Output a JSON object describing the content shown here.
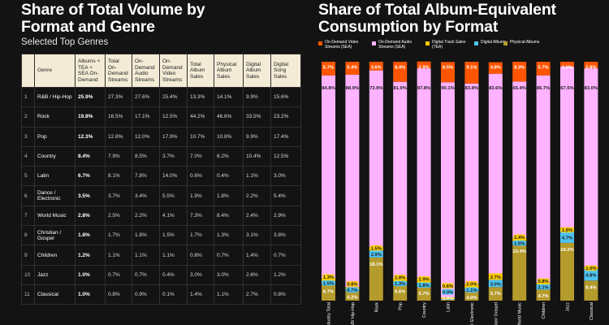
{
  "left": {
    "title_line1": "Share of Total Volume by",
    "title_line2": "Format and Genre",
    "subtitle": "Selected Top Genres",
    "headers": [
      "",
      "Genre",
      "Albums + TEA + SEA On-Demand",
      "Total On-Demand Streams",
      "On-Demand Audio Streams",
      "On-Demand Video Streams",
      "Total Album Sales",
      "Physical Album Sales",
      "Digital Album Sales",
      "Digital Song Sales"
    ],
    "rows": [
      {
        "rank": "1",
        "genre": "R&B / Hip-Hop",
        "v": [
          "25.9%",
          "27.3%",
          "27.6%",
          "25.4%",
          "13.3%",
          "14.1%",
          "9.9%",
          "15.6%"
        ]
      },
      {
        "rank": "2",
        "genre": "Rock",
        "v": [
          "19.8%",
          "16.5%",
          "17.1%",
          "12.5%",
          "44.2%",
          "46.6%",
          "33.5%",
          "23.2%"
        ]
      },
      {
        "rank": "3",
        "genre": "Pop",
        "v": [
          "12.3%",
          "12.8%",
          "12.0%",
          "17.9%",
          "10.7%",
          "10.8%",
          "9.9%",
          "17.4%"
        ]
      },
      {
        "rank": "4",
        "genre": "Country",
        "v": [
          "8.4%",
          "7.9%",
          "8.5%",
          "3.7%",
          "7.0%",
          "6.2%",
          "10.4%",
          "12.5%"
        ]
      },
      {
        "rank": "5",
        "genre": "Latin",
        "v": [
          "6.7%",
          "8.1%",
          "7.8%",
          "14.0%",
          "0.6%",
          "0.4%",
          "1.1%",
          "3.0%"
        ]
      },
      {
        "rank": "6",
        "genre": "Dance / Electronic",
        "v": [
          "3.5%",
          "3.7%",
          "3.4%",
          "5.5%",
          "1.9%",
          "1.8%",
          "2.2%",
          "5.4%"
        ]
      },
      {
        "rank": "7",
        "genre": "World Music",
        "v": [
          "2.8%",
          "2.5%",
          "2.2%",
          "4.1%",
          "7.3%",
          "8.4%",
          "2.4%",
          "2.9%"
        ]
      },
      {
        "rank": "8",
        "genre": "Christian / Gospel",
        "v": [
          "1.8%",
          "1.7%",
          "1.8%",
          "1.5%",
          "1.7%",
          "1.3%",
          "3.1%",
          "3.8%"
        ]
      },
      {
        "rank": "9",
        "genre": "Children",
        "v": [
          "1.2%",
          "1.1%",
          "1.1%",
          "1.1%",
          "0.8%",
          "0.7%",
          "1.4%",
          "0.7%"
        ]
      },
      {
        "rank": "10",
        "genre": "Jazz",
        "v": [
          "1.0%",
          "0.7%",
          "0.7%",
          "0.4%",
          "3.0%",
          "3.0%",
          "2.6%",
          "1.2%"
        ]
      },
      {
        "rank": "11",
        "genre": "Classical",
        "v": [
          "1.0%",
          "0.8%",
          "0.9%",
          "0.1%",
          "1.4%",
          "1.1%",
          "2.7%",
          "0.8%"
        ]
      }
    ]
  },
  "right": {
    "title_line1": "Share of Total Album-Equivalent",
    "title_line2": "Consumption by Format"
  },
  "colors": {
    "video": "#ff5500",
    "audio": "#ffb2ff",
    "track": "#ffcc00",
    "digital": "#4ec3f0",
    "physical": "#b59a2c"
  },
  "chart_data": {
    "type": "bar",
    "stacked": true,
    "ylim": [
      0,
      100
    ],
    "categories": [
      "Industry Total",
      "R&B/ Hip-Hop",
      "Rock",
      "Pop",
      "Country",
      "Latin",
      "Dance/ Electronic",
      "Christian/ Gospel",
      "World Music",
      "Children",
      "Jazz",
      "Classical"
    ],
    "series": [
      {
        "name": "Physical Albums",
        "key": "physical",
        "values": [
          6.7,
          4.2,
          18.1,
          6.6,
          5.7,
          0.4,
          4.0,
          5.7,
          23.4,
          4.7,
          24.2,
          8.4
        ],
        "labels": [
          "6.7%",
          "4.2%",
          "18.1%",
          "6.6%",
          "5.7%",
          "0.4%",
          "4.0%",
          "5.7%",
          "23.4%",
          "4.7%",
          "24.2%",
          "8.4%"
        ]
      },
      {
        "name": "Digital Albums",
        "key": "digital",
        "values": [
          1.5,
          0.7,
          2.9,
          1.3,
          1.8,
          0.3,
          1.1,
          3.0,
          1.5,
          2.1,
          4.7,
          4.8
        ],
        "labels": [
          "1.5%",
          "0.7%",
          "2.9%",
          "1.3%",
          "1.8%",
          "0.3%",
          "1.1%",
          "3.0%",
          "1.5%",
          "2.1%",
          "4.7%",
          "4.8%"
        ]
      },
      {
        "name": "Digital Track Sales (TEA)",
        "key": "track",
        "values": [
          1.3,
          0.8,
          1.5,
          1.8,
          1.9,
          0.6,
          2.0,
          2.7,
          1.4,
          0.8,
          1.6,
          1.0
        ],
        "labels": [
          "1.3%",
          "0.8%",
          "1.5%",
          "1.8%",
          "1.9%",
          "0.6%",
          "2.0%",
          "2.7%",
          "1.4%",
          "0.8%",
          "1.6%",
          "1.0%"
        ]
      },
      {
        "name": "On-Demand Audio Streams (SEA)",
        "key": "audio",
        "values": [
          84.8,
          88.9,
          73.9,
          81.9,
          87.8,
          90.1,
          83.8,
          83.6,
          65.4,
          86.7,
          67.5,
          83.0
        ],
        "labels": [
          "84.8%",
          "88.9%",
          "73.9%",
          "81.9%",
          "87.8%",
          "90.1%",
          "83.8%",
          "83.6%",
          "65.4%",
          "86.7%",
          "67.5%",
          "83.0%"
        ]
      },
      {
        "name": "On-Demand Video Streams (SEA)",
        "key": "video",
        "values": [
          5.7,
          5.4,
          3.6,
          8.4,
          2.9,
          8.5,
          9.1,
          4.8,
          8.3,
          5.7,
          2.0,
          2.8
        ],
        "labels": [
          "5.7%",
          "5.4%",
          "3.6%",
          "8.4%",
          "2.9%",
          "8.5%",
          "9.1%",
          "4.8%",
          "8.3%",
          "5.7%",
          "2.0%",
          "2.8%"
        ]
      }
    ]
  }
}
